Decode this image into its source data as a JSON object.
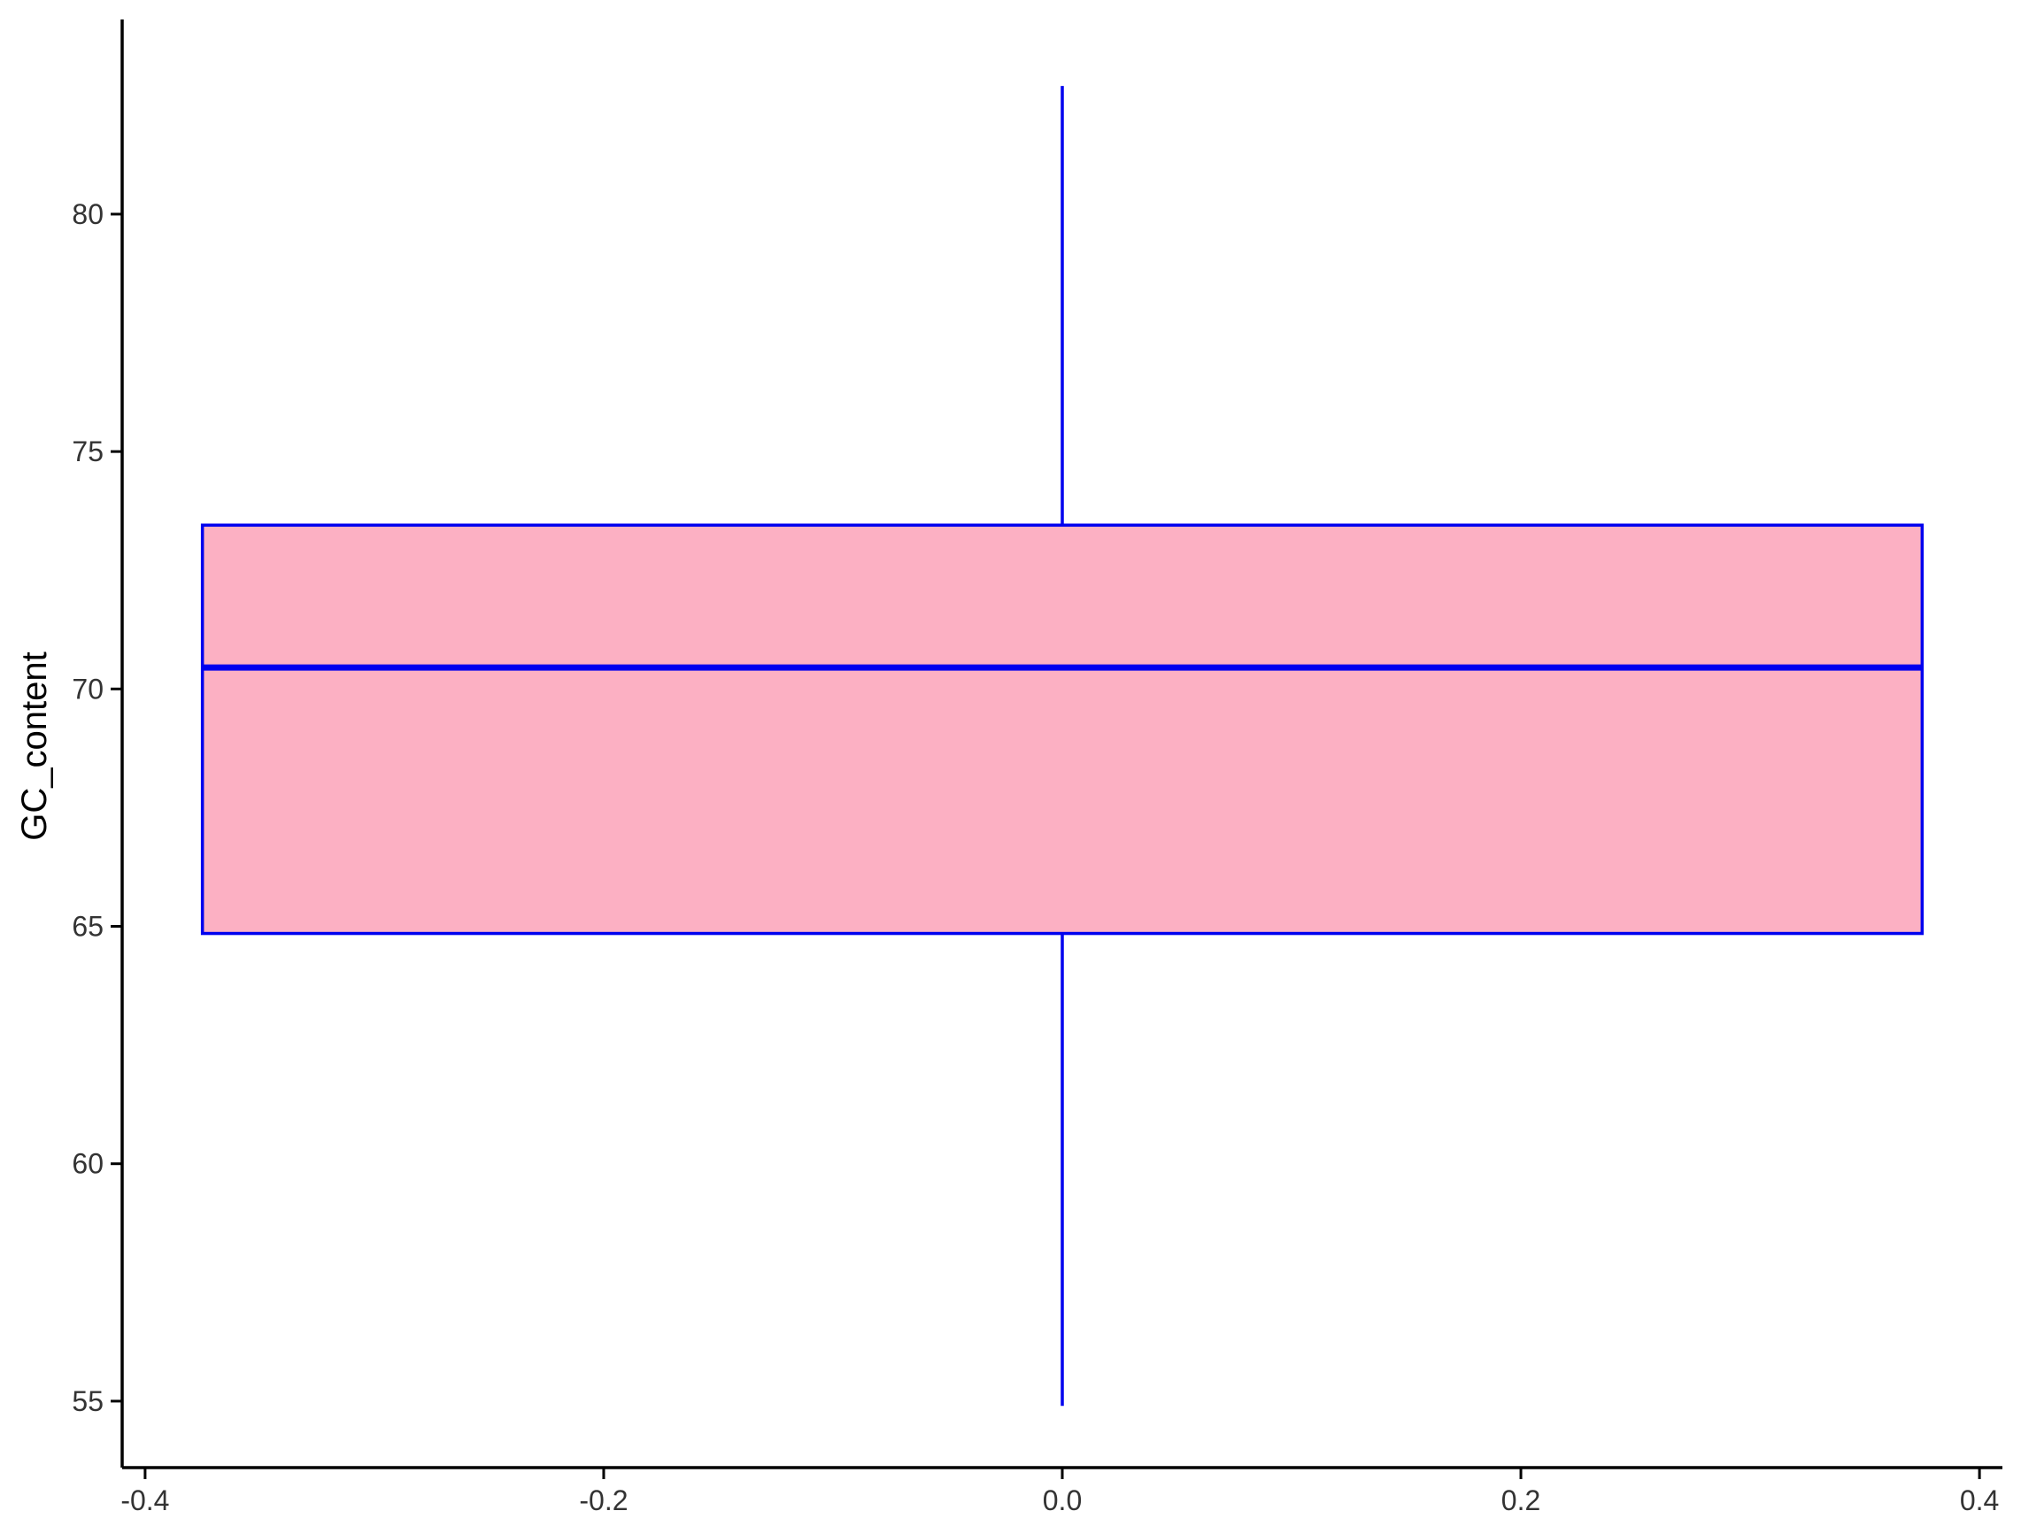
{
  "chart_data": {
    "type": "boxplot",
    "title": "",
    "xlabel": "",
    "ylabel": "GC_content",
    "xlim": [
      -0.41,
      0.41
    ],
    "ylim": [
      53.6,
      84.1
    ],
    "x_ticks": [
      -0.4,
      -0.2,
      0.0,
      0.2,
      0.4
    ],
    "x_tick_labels": [
      "-0.4",
      "-0.2",
      "0.0",
      "0.2",
      "0.4"
    ],
    "y_ticks": [
      55,
      60,
      65,
      70,
      75,
      80
    ],
    "y_tick_labels": [
      "55",
      "60",
      "65",
      "70",
      "75",
      "80"
    ],
    "box": {
      "x_center": 0.0,
      "x_left": -0.375,
      "x_right": 0.375,
      "whisker_low": 54.9,
      "q1": 64.85,
      "median": 70.45,
      "q3": 73.45,
      "whisker_high": 82.7
    },
    "grid": false,
    "colors": {
      "box_fill": "#FCB0C3",
      "box_line": "#0000EE",
      "axis_line": "#000000",
      "tick_label": "#333333"
    }
  }
}
